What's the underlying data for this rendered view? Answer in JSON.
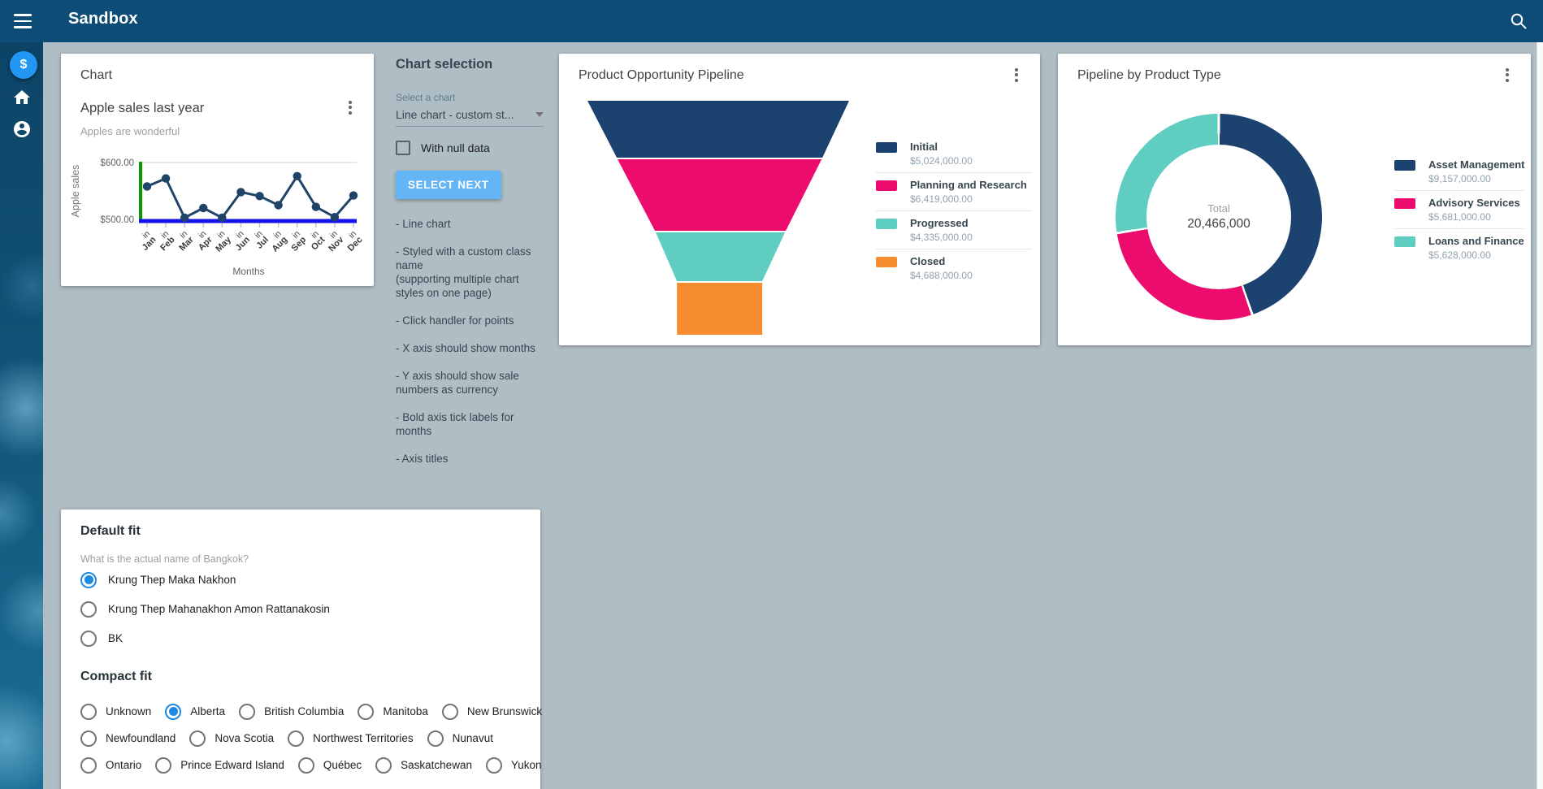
{
  "app": {
    "title": "Sandbox"
  },
  "sidebar": {
    "fab_glyph": "$"
  },
  "chart_card": {
    "panel_title": "Chart",
    "title": "Apple sales last year",
    "subtitle": "Apples are wonderful",
    "chart_data": {
      "type": "line",
      "title": "Apple sales last year",
      "xlabel": "Months",
      "ylabel": "Apple sales",
      "x_tick_prefix": "in",
      "categories": [
        "Jan",
        "Feb",
        "Mar",
        "Apr",
        "May",
        "Jun",
        "Jul",
        "Aug",
        "Sep",
        "Oct",
        "Nov",
        "Dec"
      ],
      "values": [
        558,
        572,
        503,
        520,
        503,
        548,
        541,
        525,
        576,
        522,
        504,
        542
      ],
      "ylim": [
        500,
        600
      ],
      "y_ticks": [
        "$500.00",
        "$600.00"
      ],
      "grid": "top line only",
      "line_color": "#1F4468",
      "x_axis_color": "#1414E8",
      "y_axis_color": "#0A9A00"
    }
  },
  "chart_selection": {
    "title": "Chart selection",
    "select_label": "Select a chart",
    "select_value": "Line chart - custom st...",
    "checkbox_label": "With null data",
    "checkbox_checked": false,
    "button_label": "SELECT NEXT",
    "notes": [
      "- Line chart",
      "- Styled with a custom class name\n(supporting multiple chart styles on one page)",
      "- Click handler for points",
      "- X axis should show months",
      "- Y axis should show sale numbers as currency",
      "- Bold axis tick labels for months",
      "- Axis titles"
    ]
  },
  "funnel_card": {
    "title": "Product Opportunity Pipeline",
    "chart_data": {
      "type": "funnel",
      "categories": [
        "Initial",
        "Planning and Research",
        "Progressed",
        "Closed"
      ],
      "values": [
        5024000,
        6419000,
        4335000,
        4688000
      ],
      "value_labels": [
        "$5,024,000.00",
        "$6,419,000.00",
        "$4,335,000.00",
        "$4,688,000.00"
      ],
      "colors": [
        "#1C4370",
        "#EC0C6D",
        "#5FCDC0",
        "#F78C2E"
      ],
      "legend_position": "right"
    }
  },
  "donut_card": {
    "title": "Pipeline by Product Type",
    "center_label": "Total",
    "center_value": "20,466,000",
    "chart_data": {
      "type": "pie",
      "categories": [
        "Asset Management",
        "Advisory Services",
        "Loans and Finance"
      ],
      "values": [
        9157000,
        5681000,
        5628000
      ],
      "value_labels": [
        "$9,157,000.00",
        "$5,681,000.00",
        "$5,628,000.00"
      ],
      "colors": [
        "#1C4370",
        "#EC0C6D",
        "#5FCDC0"
      ],
      "total": 20466000,
      "legend_position": "right"
    }
  },
  "default_fit_card": {
    "title": "Default fit",
    "question": "What is the actual name of Bangkok?",
    "options": [
      {
        "label": "Krung Thep Maka Nakhon",
        "selected": true
      },
      {
        "label": "Krung Thep Mahanakhon Amon Rattanakosin",
        "selected": false
      },
      {
        "label": "BK",
        "selected": false
      }
    ],
    "compact_title": "Compact fit",
    "compact_rows": [
      [
        {
          "label": "Unknown",
          "selected": false
        },
        {
          "label": "Alberta",
          "selected": true
        },
        {
          "label": "British Columbia",
          "selected": false
        },
        {
          "label": "Manitoba",
          "selected": false
        },
        {
          "label": "New Brunswick",
          "selected": false
        }
      ],
      [
        {
          "label": "Newfoundland",
          "selected": false
        },
        {
          "label": "Nova Scotia",
          "selected": false
        },
        {
          "label": "Northwest Territories",
          "selected": false
        },
        {
          "label": "Nunavut",
          "selected": false
        }
      ],
      [
        {
          "label": "Ontario",
          "selected": false
        },
        {
          "label": "Prince Edward Island",
          "selected": false
        },
        {
          "label": "Québec",
          "selected": false
        },
        {
          "label": "Saskatchewan",
          "selected": false
        },
        {
          "label": "Yukon",
          "selected": false
        }
      ]
    ]
  },
  "colors": {
    "topbar": "#0E4C78",
    "background": "#AFBDC4",
    "accent_blue": "#2196F3",
    "button_blue": "#64B5F6"
  }
}
